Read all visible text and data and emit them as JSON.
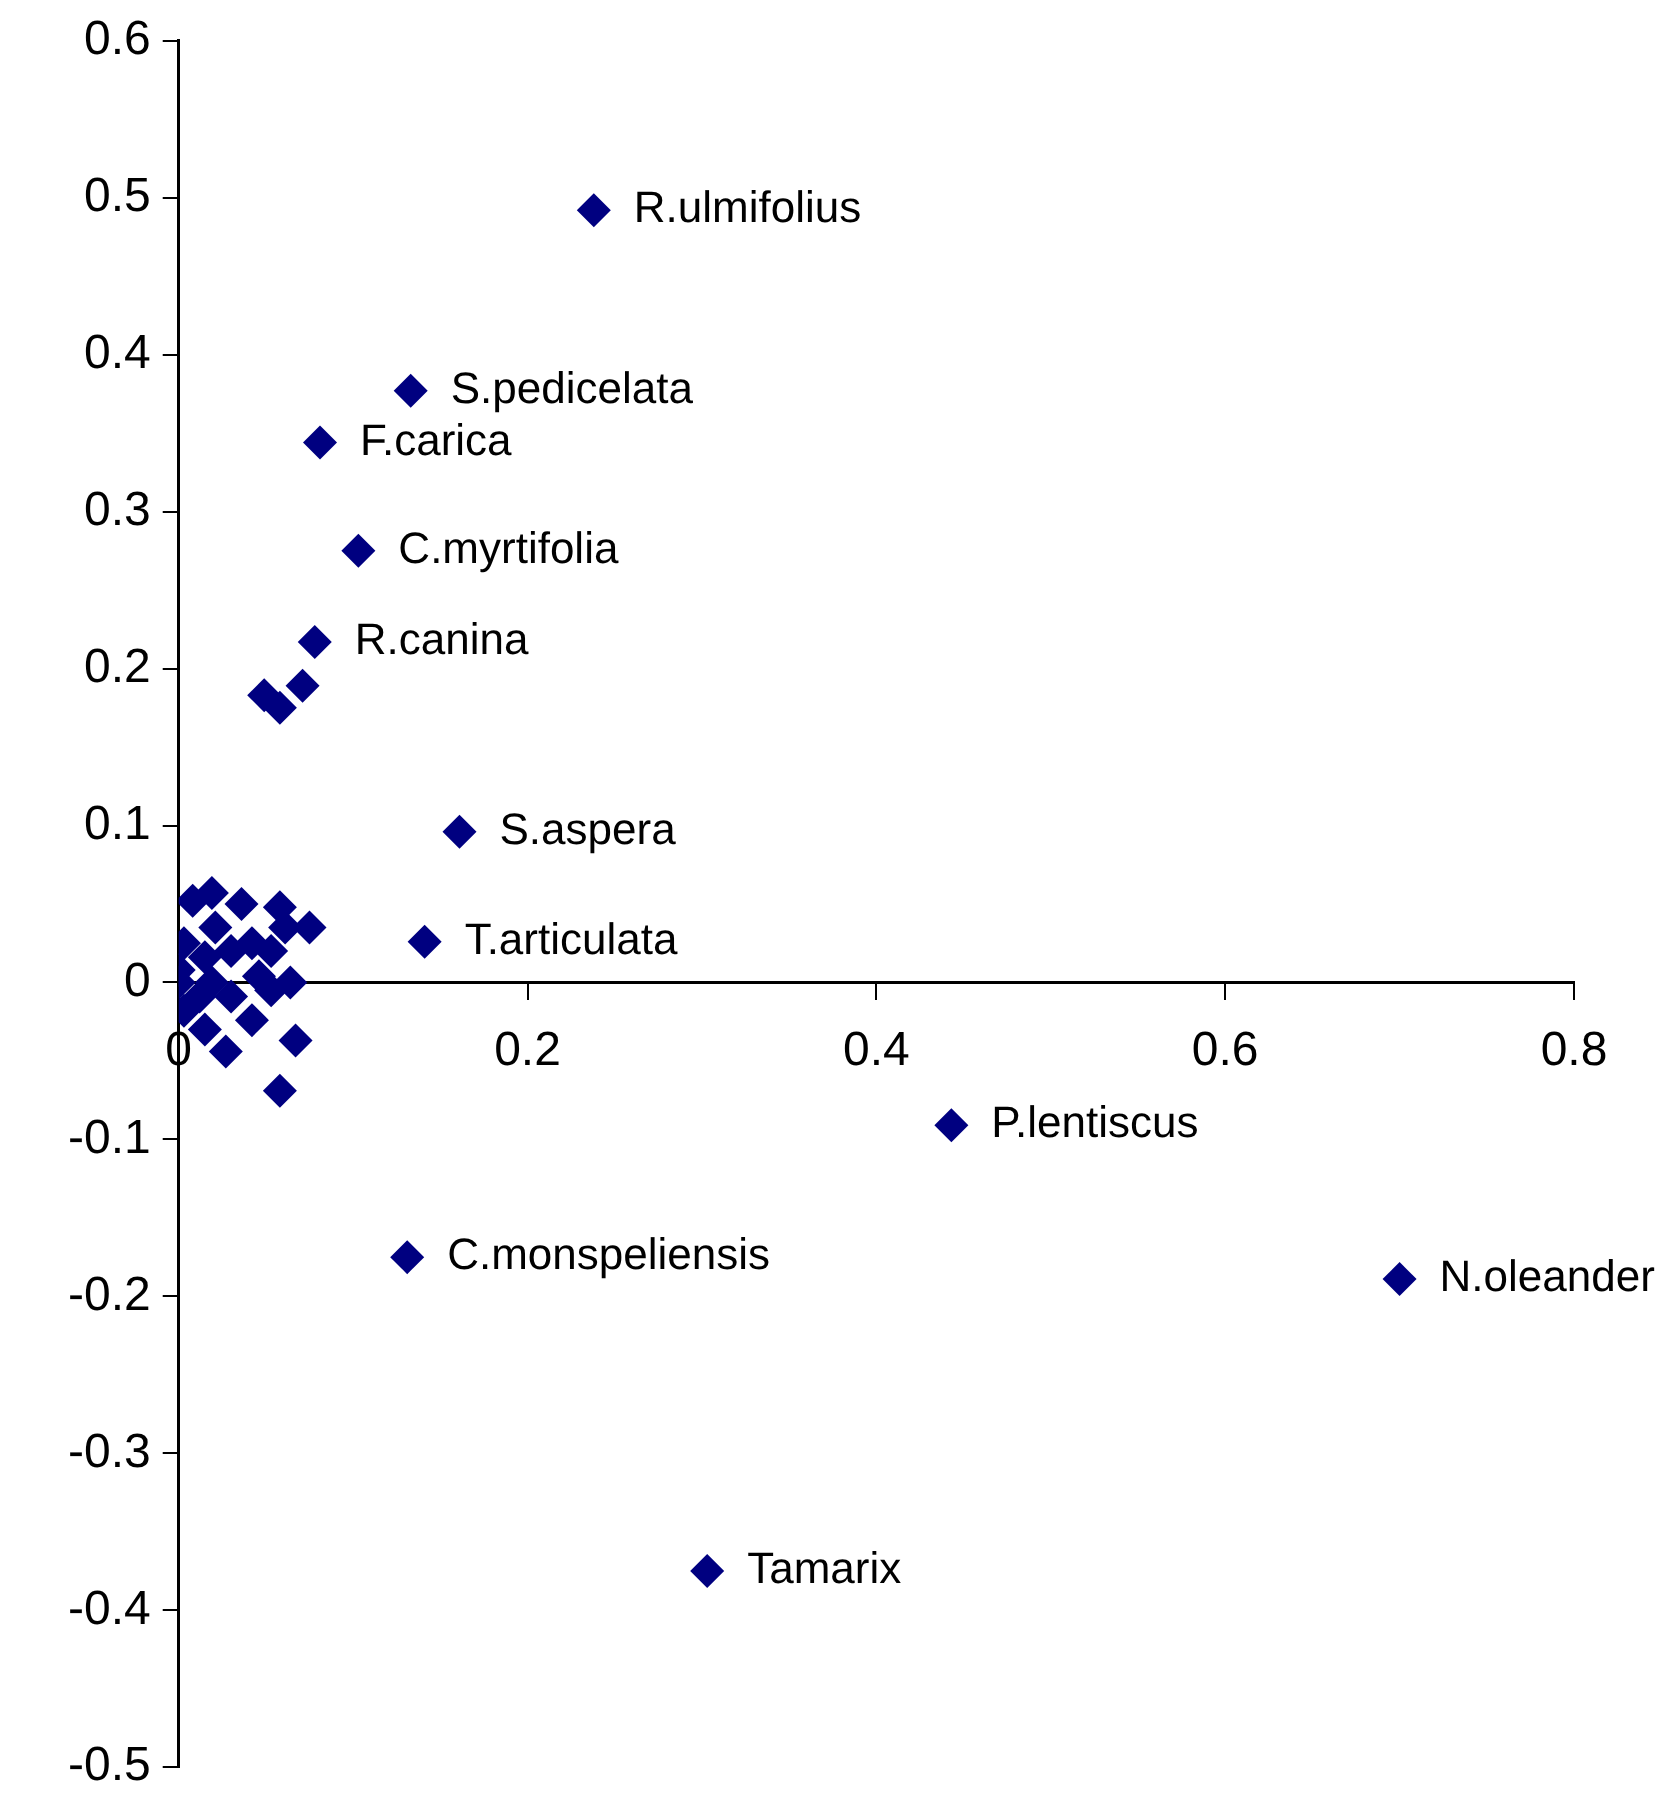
{
  "chart_data": {
    "type": "scatter",
    "marker": "diamond",
    "legend": false,
    "grid": false,
    "xlim": [
      0,
      0.8
    ],
    "xticks": [
      0,
      0.2,
      0.4,
      0.6,
      0.8
    ],
    "ylim": [
      -0.5,
      0.6
    ],
    "yticks": [
      -0.5,
      -0.4,
      -0.3,
      -0.2,
      -0.1,
      0,
      0.1,
      0.2,
      0.3,
      0.4,
      0.5,
      0.6
    ],
    "series": [
      {
        "color": "#000080",
        "x": [
          0.238,
          0.133,
          0.081,
          0.103,
          0.078,
          0.161,
          0.141,
          0.443,
          0.131,
          0.7,
          0.303,
          0.071,
          0.049,
          0.058,
          0.019,
          0.036,
          0.058,
          0.075,
          0.061,
          0.008,
          0.021,
          0.003,
          0.0,
          0.015,
          0.03,
          0.042,
          0.053,
          0.064,
          0.053,
          0.046,
          0.042,
          0.027,
          0.015,
          0.003,
          0.03,
          0.019,
          0.067,
          0.058,
          0.0,
          0.012
        ],
        "values": [
          0.492,
          0.377,
          0.344,
          0.275,
          0.217,
          0.096,
          0.026,
          -0.091,
          -0.175,
          -0.189,
          -0.375,
          0.189,
          0.183,
          0.175,
          0.057,
          0.05,
          0.048,
          0.035,
          0.035,
          0.052,
          0.035,
          0.025,
          0.0,
          0.016,
          0.02,
          0.025,
          0.02,
          0.0,
          -0.005,
          0.004,
          -0.024,
          -0.044,
          -0.03,
          -0.018,
          -0.009,
          0.0,
          -0.037,
          -0.069,
          0.008,
          -0.009
        ]
      }
    ],
    "annotations": [
      {
        "text": "R.ulmifolius",
        "x": 0.238,
        "y": 0.492
      },
      {
        "text": "S.pedicelata",
        "x": 0.133,
        "y": 0.377
      },
      {
        "text": "F.carica",
        "x": 0.081,
        "y": 0.344
      },
      {
        "text": "C.myrtifolia",
        "x": 0.103,
        "y": 0.275
      },
      {
        "text": "R.canina",
        "x": 0.078,
        "y": 0.217
      },
      {
        "text": "S.aspera",
        "x": 0.161,
        "y": 0.096
      },
      {
        "text": "T.articulata",
        "x": 0.141,
        "y": 0.026
      },
      {
        "text": "P.lentiscus",
        "x": 0.443,
        "y": -0.091
      },
      {
        "text": "C.monspeliensis",
        "x": 0.131,
        "y": -0.175
      },
      {
        "text": "N.oleander",
        "x": 0.7,
        "y": -0.189
      },
      {
        "text": "Tamarix",
        "x": 0.303,
        "y": -0.375
      }
    ]
  }
}
